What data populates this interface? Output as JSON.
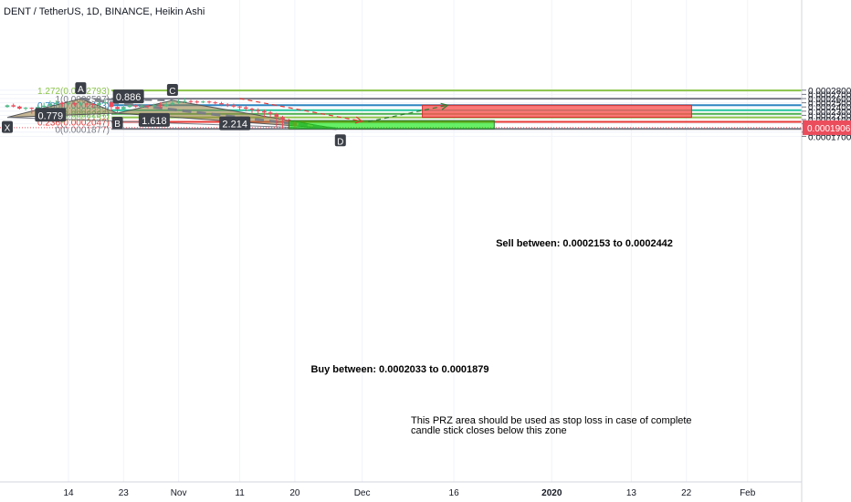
{
  "header": {
    "title": "DENT / TetherUS, 1D, BINANCE, Heikin Ashi"
  },
  "chart_data": {
    "type": "candlestick",
    "title": "DENT / TetherUS, 1D, BINANCE, Heikin Ashi",
    "ylim": [
      0.000166,
      0.000285
    ],
    "y_ticks": [
      "0.0002800",
      "0.0002700",
      "0.0002600",
      "0.0002500",
      "0.0002400",
      "0.0002300",
      "0.0002200",
      "0.0002100",
      "0.0002000",
      "0.0001800",
      "0.0001700"
    ],
    "current_price": "0.0001906",
    "x_ticks": [
      {
        "label": "14",
        "day": 0
      },
      {
        "label": "23",
        "day": 9
      },
      {
        "label": "Nov",
        "day": 18
      },
      {
        "label": "11",
        "day": 28
      },
      {
        "label": "20",
        "day": 37
      },
      {
        "label": "Dec",
        "day": 48
      },
      {
        "label": "16",
        "day": 63
      },
      {
        "label": "2020",
        "day": 79
      },
      {
        "label": "13",
        "day": 92
      },
      {
        "label": "22",
        "day": 101
      },
      {
        "label": "Feb",
        "day": 111
      }
    ],
    "colors": {
      "up": "#53b987",
      "down": "#eb4d5c",
      "fib_1272": "#8bc34a",
      "fib_1": "#787b86",
      "fib_0786": "#2e86c1",
      "fib_0618": "#26c6a0",
      "fib_05": "#4caf50",
      "fib_0382": "#8bc34a",
      "fib_0236": "#e53935",
      "fib_0": "#787b86"
    },
    "fib_levels": [
      {
        "label": "1.272(0.0002793)",
        "value": 0.0002793,
        "key": "fib_1272"
      },
      {
        "label": "1(0.0002597)",
        "value": 0.0002597,
        "key": "fib_1"
      },
      {
        "label": "0.786(0.0002443)",
        "value": 0.0002443,
        "key": "fib_0786"
      },
      {
        "label": "0.618(0.0002322)",
        "value": 0.0002322,
        "key": "fib_0618"
      },
      {
        "label": "0.5(0.0002237)",
        "value": 0.0002237,
        "key": "fib_05"
      },
      {
        "label": "0.382(0.0002152)",
        "value": 0.0002152,
        "key": "fib_0382"
      },
      {
        "label": "0.236(0.0002047)",
        "value": 0.0002047,
        "key": "fib_0236"
      },
      {
        "label": "0(0.0001877)",
        "value": 0.0001877,
        "key": "fib_0"
      }
    ],
    "candles": [
      [
        -10,
        0.00024,
        0.000244,
        0.000238,
        0.000246
      ],
      [
        -9,
        0.000244,
        0.000241,
        0.000239,
        0.000248
      ],
      [
        -8,
        0.000241,
        0.000236,
        0.000234,
        0.000243
      ],
      [
        -7,
        0.000236,
        0.000238,
        0.000232,
        0.00024
      ],
      [
        -6,
        0.000238,
        0.000236,
        0.000224,
        0.000239
      ],
      [
        -5,
        0.000236,
        0.00024,
        0.000232,
        0.000245
      ],
      [
        -4,
        0.00024,
        0.000243,
        0.000238,
        0.00025
      ],
      [
        -3,
        0.000243,
        0.000247,
        0.00024,
        0.000255
      ],
      [
        -2,
        0.000247,
        0.00025,
        0.000244,
        0.000256
      ],
      [
        -1,
        0.00025,
        0.000247,
        0.00024,
        0.000252
      ],
      [
        0,
        0.000247,
        0.000249,
        0.000244,
        0.000253
      ],
      [
        1,
        0.000249,
        0.000246,
        0.000242,
        0.000251
      ],
      [
        2,
        0.000246,
        0.000248,
        0.000243,
        0.000252
      ],
      [
        3,
        0.000248,
        0.000247,
        0.00024,
        0.00025
      ],
      [
        4,
        0.000247,
        0.000245,
        0.000238,
        0.000249
      ],
      [
        5,
        0.000245,
        0.000249,
        0.000241,
        0.000255
      ],
      [
        6,
        0.000249,
        0.000251,
        0.000246,
        0.00026
      ],
      [
        7,
        0.000251,
        0.00024,
        0.00023,
        0.000252
      ],
      [
        8,
        0.00024,
        0.000235,
        0.000226,
        0.000242
      ],
      [
        9,
        0.000235,
        0.00024,
        0.000232,
        0.000247
      ],
      [
        10,
        0.00024,
        0.000244,
        0.000238,
        0.000246
      ],
      [
        11,
        0.000244,
        0.000241,
        0.000238,
        0.000247
      ],
      [
        12,
        0.000241,
        0.000243,
        0.000238,
        0.000247
      ],
      [
        13,
        0.000243,
        0.000242,
        0.000237,
        0.000246
      ],
      [
        14,
        0.000242,
        0.000244,
        0.000238,
        0.000248
      ],
      [
        15,
        0.000244,
        0.000242,
        0.000237,
        0.000251
      ],
      [
        16,
        0.000242,
        0.000246,
        0.00024,
        0.000252
      ],
      [
        17,
        0.000246,
        0.00025,
        0.000244,
        0.000255
      ],
      [
        18,
        0.00025,
        0.000252,
        0.000247,
        0.000259
      ],
      [
        19,
        0.000252,
        0.000254,
        0.000249,
        0.000262
      ],
      [
        20,
        0.000254,
        0.000253,
        0.000249,
        0.000257
      ],
      [
        21,
        0.000253,
        0.000251,
        0.000248,
        0.000256
      ],
      [
        22,
        0.000251,
        0.000253,
        0.000249,
        0.000255
      ],
      [
        23,
        0.000253,
        0.000251,
        0.000248,
        0.000255
      ],
      [
        24,
        0.000251,
        0.000249,
        0.000245,
        0.000254
      ],
      [
        25,
        0.000249,
        0.000246,
        0.000242,
        0.000252
      ],
      [
        26,
        0.000246,
        0.000244,
        0.00024,
        0.000249
      ],
      [
        27,
        0.000244,
        0.000241,
        0.000238,
        0.000248
      ],
      [
        28,
        0.000241,
        0.000239,
        0.000232,
        0.000244
      ],
      [
        29,
        0.000239,
        0.000236,
        0.00023,
        0.000243
      ],
      [
        30,
        0.000236,
        0.000233,
        0.000226,
        0.000238
      ],
      [
        31,
        0.000233,
        0.00023,
        0.000222,
        0.000237
      ],
      [
        32,
        0.00023,
        0.000227,
        0.000215,
        0.000234
      ],
      [
        33,
        0.000227,
        0.000223,
        0.000215,
        0.000231
      ],
      [
        34,
        0.000223,
        0.000216,
        0.000193,
        0.000226
      ],
      [
        35,
        0.000216,
        0.00021,
        0.000189,
        0.000219
      ],
      [
        36,
        0.00021,
        0.000204,
        0.000188,
        0.000212
      ],
      [
        37,
        0.000204,
        0.000194,
        0.000189,
        0.000208
      ]
    ],
    "pattern_points": [
      {
        "label": "X",
        "day": -10,
        "value": 0.0002152
      },
      {
        "label": "A",
        "day": 2,
        "value": 0.0002597
      },
      {
        "label": "B",
        "day": 8,
        "value": 0.0002253
      },
      {
        "label": "C",
        "day": 17,
        "value": 0.0002556
      },
      {
        "label": "D",
        "day": 44,
        "value": 0.0001877
      }
    ],
    "ratios": [
      {
        "label": "0.886"
      },
      {
        "label": "0.779"
      },
      {
        "label": "2.214"
      },
      {
        "label": "1.618"
      }
    ],
    "sell_zone": {
      "label": "Sell between: 0.0002153 to 0.0002442",
      "top": 0.0002442,
      "bottom": 0.0002153,
      "from_day": 58,
      "to_day": 102
    },
    "buy_zone": {
      "label": "Buy between: 0.0002033 to 0.0001879",
      "top": 0.0002033,
      "bottom": 0.0001879,
      "from_day": 35,
      "to_day": 69
    },
    "note": {
      "line1": "This PRZ area should be used as stop loss in case of complete",
      "line2": "candle stick closes below this zone"
    }
  }
}
